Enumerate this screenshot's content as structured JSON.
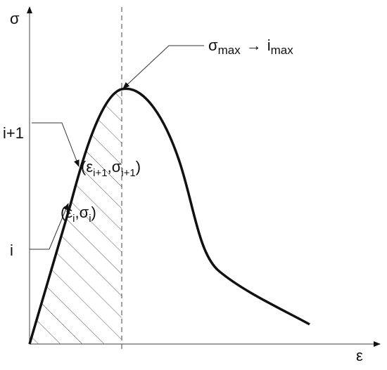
{
  "axes": {
    "y_label": "σ",
    "x_label": "ε"
  },
  "markers": [
    {
      "label": "i+1"
    },
    {
      "label": "i"
    }
  ],
  "points": [
    {
      "parts": [
        "(",
        "ε",
        "i+1",
        ",",
        "σ",
        "i+1",
        ")"
      ]
    },
    {
      "parts": [
        "(",
        "ε",
        "i",
        ",",
        "σ",
        "i",
        ")"
      ]
    }
  ],
  "peak": {
    "parts": [
      "σ",
      "max",
      "→",
      "i",
      "max"
    ]
  }
}
